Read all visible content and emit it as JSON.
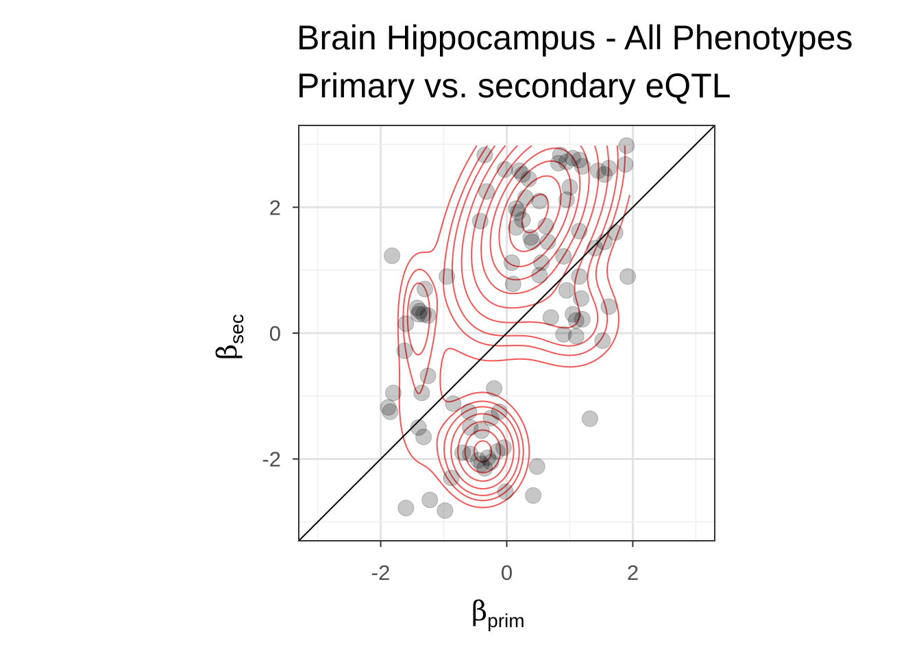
{
  "chart_data": {
    "type": "scatter",
    "title": "Brain Hippocampus - All Phenotypes",
    "subtitle": "Primary vs. secondary eQTL",
    "xlabel": {
      "symbol": "β",
      "subscript": "prim"
    },
    "ylabel": {
      "symbol": "β",
      "subscript": "sec"
    },
    "xlim": [
      -3.3,
      3.3
    ],
    "ylim": [
      -3.3,
      3.3
    ],
    "xticks": [
      -2,
      0,
      2
    ],
    "yticks": [
      -2,
      0,
      2
    ],
    "xtick_labels": [
      "-2",
      "0",
      "2"
    ],
    "ytick_labels": [
      "-2",
      "0",
      "2"
    ],
    "grid": true,
    "reference_line": {
      "slope": 1,
      "intercept": 0,
      "color": "#000000"
    },
    "point_color": "#000000",
    "point_alpha": 0.22,
    "contour_color": "#ee2c2c",
    "points": [
      [
        -0.35,
        2.83
      ],
      [
        0.85,
        2.83
      ],
      [
        1.05,
        2.78
      ],
      [
        1.15,
        2.75
      ],
      [
        0.95,
        2.72
      ],
      [
        0.82,
        2.7
      ],
      [
        1.2,
        2.65
      ],
      [
        1.45,
        2.58
      ],
      [
        1.55,
        2.52
      ],
      [
        1.62,
        2.62
      ],
      [
        1.88,
        2.68
      ],
      [
        1.9,
        2.98
      ],
      [
        -0.03,
        2.6
      ],
      [
        0.2,
        2.58
      ],
      [
        0.25,
        2.52
      ],
      [
        0.35,
        2.45
      ],
      [
        1.0,
        2.32
      ],
      [
        -0.32,
        2.25
      ],
      [
        0.3,
        2.15
      ],
      [
        0.52,
        2.1
      ],
      [
        0.95,
        2.12
      ],
      [
        0.15,
        1.98
      ],
      [
        0.18,
        1.92
      ],
      [
        0.25,
        1.8
      ],
      [
        -0.42,
        1.78
      ],
      [
        0.62,
        1.7
      ],
      [
        0.15,
        1.68
      ],
      [
        0.38,
        1.52
      ],
      [
        0.4,
        1.45
      ],
      [
        0.65,
        1.45
      ],
      [
        1.15,
        1.62
      ],
      [
        1.4,
        1.35
      ],
      [
        1.55,
        1.45
      ],
      [
        1.72,
        1.6
      ],
      [
        0.9,
        1.22
      ],
      [
        0.55,
        1.12
      ],
      [
        0.08,
        1.12
      ],
      [
        1.15,
        0.9
      ],
      [
        0.52,
        0.92
      ],
      [
        0.1,
        0.78
      ],
      [
        0.95,
        0.68
      ],
      [
        1.18,
        0.55
      ],
      [
        0.7,
        0.25
      ],
      [
        1.05,
        0.3
      ],
      [
        1.1,
        0.2
      ],
      [
        1.2,
        0.22
      ],
      [
        0.9,
        -0.02
      ],
      [
        1.1,
        -0.05
      ],
      [
        1.52,
        -0.12
      ],
      [
        1.62,
        0.42
      ],
      [
        1.92,
        0.9
      ],
      [
        -0.95,
        0.9
      ],
      [
        -1.3,
        0.7
      ],
      [
        -1.42,
        0.4
      ],
      [
        -1.38,
        0.35
      ],
      [
        -1.4,
        0.3
      ],
      [
        -1.32,
        0.3
      ],
      [
        -1.25,
        0.28
      ],
      [
        -1.6,
        0.15
      ],
      [
        -1.62,
        -0.28
      ],
      [
        -1.82,
        1.23
      ],
      [
        -1.25,
        -0.68
      ],
      [
        -1.35,
        -0.95
      ],
      [
        -1.8,
        -0.95
      ],
      [
        -1.88,
        -1.18
      ],
      [
        -1.85,
        -1.25
      ],
      [
        -0.2,
        -0.88
      ],
      [
        -0.85,
        -1.12
      ],
      [
        -0.6,
        -1.25
      ],
      [
        -1.4,
        -1.5
      ],
      [
        -1.32,
        -1.65
      ],
      [
        -0.58,
        -1.5
      ],
      [
        -0.25,
        -1.35
      ],
      [
        -0.12,
        -1.25
      ],
      [
        -0.4,
        -1.55
      ],
      [
        -0.05,
        -1.82
      ],
      [
        -0.15,
        -1.88
      ],
      [
        -0.7,
        -1.9
      ],
      [
        -0.58,
        -1.92
      ],
      [
        -0.3,
        -1.98
      ],
      [
        -0.45,
        -2.02
      ],
      [
        -0.4,
        -2.08
      ],
      [
        -0.35,
        -2.15
      ],
      [
        -0.25,
        -2.05
      ],
      [
        -0.88,
        -2.3
      ],
      [
        0.48,
        -2.12
      ],
      [
        -0.02,
        -2.52
      ],
      [
        0.42,
        -2.58
      ],
      [
        -1.6,
        -2.78
      ],
      [
        -1.22,
        -2.65
      ],
      [
        -0.98,
        -2.82
      ],
      [
        1.32,
        -1.36
      ]
    ],
    "density_centers": [
      {
        "x": 0.45,
        "y": 1.9,
        "sx": 0.65,
        "sy": 0.95,
        "r": 0.45,
        "w": 1.0
      },
      {
        "x": -0.38,
        "y": -1.88,
        "sx": 0.33,
        "sy": 0.4,
        "r": 0.0,
        "w": 0.6
      },
      {
        "x": -1.42,
        "y": 0.32,
        "sx": 0.18,
        "sy": 0.55,
        "r": 0.0,
        "w": 0.16
      },
      {
        "x": 1.05,
        "y": 0.2,
        "sx": 0.45,
        "sy": 0.45,
        "r": 0.0,
        "w": 0.18
      },
      {
        "x": -1.4,
        "y": -1.2,
        "sx": 0.3,
        "sy": 0.8,
        "r": 0.0,
        "w": 0.08
      }
    ],
    "contour_levels": [
      0.05,
      0.09,
      0.13,
      0.2,
      0.3,
      0.42,
      0.55,
      0.68,
      0.82,
      0.95
    ]
  }
}
